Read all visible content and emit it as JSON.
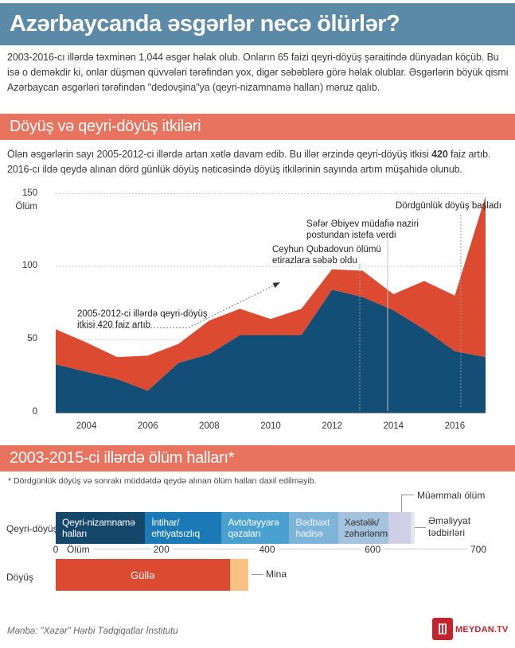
{
  "page": {
    "title": "Azərbaycanda əsgərlər necə ölürlər?",
    "intro": "2003-2016-cı illərdə təxminən 1,044 əsgər həlak olub. Onların 65 faizi qeyri-döyüş şəraitində dünyadan köçüb. Bu isə o deməkdir ki, onlar düşmən qüvvələri tərəfindən yox, digər səbəblərə görə həlak olublar. Əsgərlərin böyük qismi Azərbaycan əsgərləri tərəfindən \"dedovşina\"ya (qeyri-nizamnamə halları) məruz qalıb.",
    "source": "Mənbə: \"Xəzər\" Hərbi Tədqiqatlar İnstitutu",
    "brand": {
      "name": "MEYDAN.TV",
      "color": "#c4232b"
    }
  },
  "section1": {
    "header": "Döyüş və qeyri-döyüş itkiləri",
    "body_before": "Ölən əsgərlərin sayı 2005-2012-ci illərdə artan xətlə davam edib. Bu illər ərzində qeyri-döyüş itkisi ",
    "body_bold": "420",
    "body_after": " faiz artıb. 2016-cı ildə qeydə alınan dörd günlük döyüş nəticəsində döyüş itkilərinin sayında artım müşahidə olunub."
  },
  "section2": {
    "header": "2003-2015-ci illərdə ölüm halları*",
    "footnote": "* Dördgünlük döyüş və sonrakı müddətdə qeydə alınan ölüm halları daxil edilməyib."
  },
  "chart_data": [
    {
      "type": "area",
      "stacked": true,
      "ylabel": "Ölüm",
      "ylim": [
        0,
        150
      ],
      "yticks": [
        0,
        50,
        100,
        150
      ],
      "xticks": [
        2004,
        2006,
        2008,
        2010,
        2012,
        2014,
        2016
      ],
      "x": [
        2003,
        2004,
        2005,
        2006,
        2007,
        2008,
        2009,
        2010,
        2011,
        2012,
        2013,
        2014,
        2015,
        2016,
        2017
      ],
      "series": [
        {
          "name": "qeyri-döyüş itkiləri",
          "color": "#134e77",
          "values": [
            33,
            28,
            23,
            15,
            34,
            40,
            53,
            53,
            53,
            84,
            79,
            70,
            57,
            42,
            38
          ]
        },
        {
          "name": "döyüş itkiləri",
          "color": "#dc4a31",
          "values": [
            24,
            20,
            15,
            24,
            13,
            23,
            18,
            11,
            18,
            14,
            18,
            11,
            33,
            38,
            110
          ]
        }
      ],
      "annotations": [
        {
          "id": "trend",
          "line1": "2005-2012-ci illərdə qeyri-döyüş",
          "line2": "itkisi 420 faiz artıb"
        },
        {
          "id": "qubadov",
          "line1": "Ceyhun Qubadovun ölümü",
          "line2": "etirazlara səbəb oldu",
          "x_year": 2012.9
        },
        {
          "id": "abiyev",
          "line1": "Səfər Əbiyev müdafiə naziri",
          "line2": "postundan istefa verdi",
          "x_year": 2013.8
        },
        {
          "id": "fourday",
          "line1": "Dördgünlük döyüş başladı",
          "x_year": 2016.2
        }
      ]
    },
    {
      "type": "bar",
      "orientation": "horizontal",
      "xlabel": "Ölüm",
      "xticks": [
        0,
        200,
        400,
        600,
        700
      ],
      "rows": [
        {
          "label": "Qeyri-döyüş",
          "segments": [
            {
              "label": "Qeyri-nizamnamə halları",
              "line1": "Qeyri-nizamnamə",
              "line2": "halları",
              "value": 169,
              "color": "#15476b",
              "text": "#ffffff"
            },
            {
              "label": "İntihar/ehtiyatsızlıq",
              "line1": "İntihar/",
              "line2": "ehtiyatsızlıq",
              "value": 145,
              "color": "#1b7ab5",
              "text": "#ffffff"
            },
            {
              "label": "Avto/təyyarə qəzaları",
              "line1": "Avto/təyyarə",
              "line2": "qəzaları",
              "value": 128,
              "color": "#4aa0cf",
              "text": "#ffffff"
            },
            {
              "label": "Bədbəxt hadisə",
              "line1": "Bədbəxt",
              "line2": "hadisə",
              "value": 92,
              "color": "#7fb4d9",
              "text": "#eef4fa"
            },
            {
              "label": "Xəstəlik/zəhərlənmə",
              "line1": "Xəstəlik/",
              "line2": "zəhərlənmə",
              "value": 96,
              "color": "#a5c3de",
              "text": "#333333"
            },
            {
              "label": "Müəmmalı ölüm",
              "value": 42,
              "color": "#cfd0e6"
            },
            {
              "label": "Əməliyyat tədbirləri",
              "value": 8,
              "color": "#eae4f1"
            }
          ]
        },
        {
          "label": "Döyüş",
          "segments": [
            {
              "label": "Güllə",
              "value": 329,
              "color": "#dc4a31",
              "text": "#ffffff",
              "center": true
            },
            {
              "label": "Mina",
              "value": 36,
              "color": "#f9c285"
            }
          ]
        }
      ]
    }
  ]
}
